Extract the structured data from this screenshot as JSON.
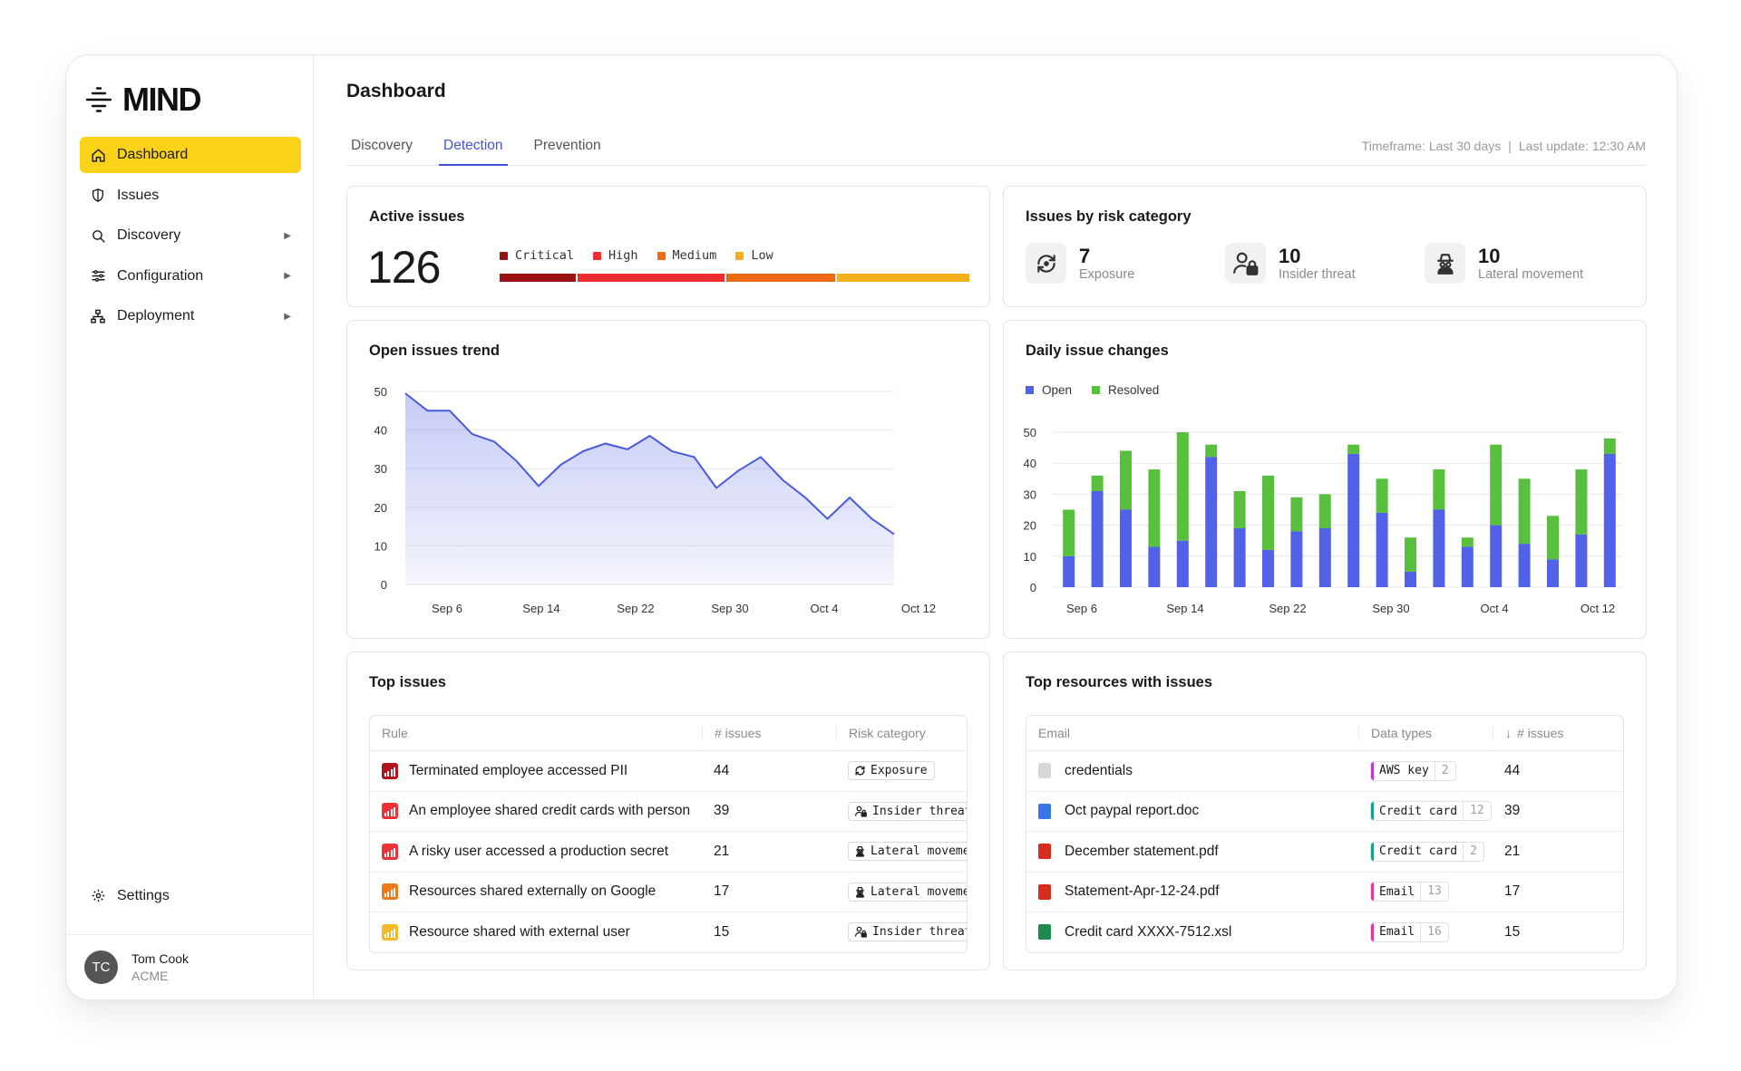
{
  "app": {
    "logo": "MIND"
  },
  "sidebar": {
    "items": [
      {
        "label": "Dashboard",
        "icon": "home-icon",
        "active": true
      },
      {
        "label": "Issues",
        "icon": "shield-icon"
      },
      {
        "label": "Discovery",
        "icon": "search-icon",
        "expandable": true
      },
      {
        "label": "Configuration",
        "icon": "sliders-icon",
        "expandable": true
      },
      {
        "label": "Deployment",
        "icon": "network-icon",
        "expandable": true
      }
    ],
    "settings": "Settings",
    "user": {
      "initials": "TC",
      "name": "Tom Cook",
      "org": "ACME"
    }
  },
  "header": {
    "title": "Dashboard",
    "tabs": [
      "Discovery",
      "Detection",
      "Prevention"
    ],
    "active_tab": "Detection",
    "timeframe": "Timeframe: Last 30 days",
    "separator": "|",
    "last_update": "Last update: 12:30 AM"
  },
  "active_issues": {
    "title": "Active issues",
    "total": "126",
    "legend": [
      {
        "label": "Critical",
        "color": "#9b1112",
        "share": 0.165
      },
      {
        "label": "High",
        "color": "#ee2e33",
        "share": 0.315
      },
      {
        "label": "Medium",
        "color": "#ec6a12",
        "share": 0.235
      },
      {
        "label": "Low",
        "color": "#f5b019",
        "share": 0.285
      }
    ]
  },
  "risk": {
    "title": "Issues by risk category",
    "items": [
      {
        "value": "7",
        "label": "Exposure",
        "icon": "refresh-icon"
      },
      {
        "value": "10",
        "label": "Insider threat",
        "icon": "user-lock-icon"
      },
      {
        "value": "10",
        "label": "Lateral movement",
        "icon": "spy-icon"
      }
    ]
  },
  "trend": {
    "title": "Open issues trend",
    "chart_data": {
      "type": "area",
      "y_ticks": [
        "50",
        "40",
        "30",
        "20",
        "10",
        "0"
      ],
      "x_ticks": [
        "Sep 6",
        "Sep 14",
        "Sep 22",
        "Sep 30",
        "Oct 4",
        "Oct 12"
      ],
      "ylim": [
        0,
        50
      ],
      "values": [
        49.5,
        45,
        45,
        39,
        37,
        32,
        25.5,
        31,
        34.5,
        36.5,
        35,
        38.5,
        34.5,
        33,
        25,
        29.5,
        33,
        27,
        22.5,
        17,
        22.5,
        17,
        13
      ],
      "color": "#4b5be0"
    }
  },
  "daily": {
    "title": "Daily issue changes",
    "legend": [
      {
        "label": "Open",
        "color": "#5161e8"
      },
      {
        "label": "Resolved",
        "color": "#59bf3e"
      }
    ],
    "chart_data": {
      "type": "bar",
      "stacked": true,
      "y_ticks": [
        "50",
        "40",
        "30",
        "20",
        "10",
        "0"
      ],
      "x_ticks": [
        "Sep 6",
        "Sep 14",
        "Sep 22",
        "Sep 30",
        "Oct 4",
        "Oct 12"
      ],
      "ylim": [
        0,
        50
      ],
      "series": [
        {
          "name": "Open",
          "values": [
            10,
            31,
            25,
            13,
            15,
            42,
            19,
            12,
            18,
            19,
            43,
            24,
            5,
            25,
            13,
            20,
            14,
            9,
            17,
            43
          ]
        },
        {
          "name": "Resolved",
          "values": [
            15,
            5,
            19,
            25,
            35,
            4,
            12,
            24,
            11,
            11,
            3,
            11,
            11,
            13,
            3,
            26,
            21,
            14,
            21,
            5
          ]
        }
      ]
    }
  },
  "top_issues": {
    "title": "Top issues",
    "columns": [
      "Rule",
      "# issues",
      "Risk category"
    ],
    "rows": [
      {
        "rule": "Terminated employee accessed PII",
        "count": "44",
        "category": "Exposure",
        "cat_icon": "refresh-icon",
        "color": "#b3131c"
      },
      {
        "rule": "An employee shared credit cards with person",
        "count": "39",
        "category": "Insider threat",
        "cat_icon": "user-lock-icon",
        "color": "#ec3137"
      },
      {
        "rule": "A risky user accessed a production secret",
        "count": "21",
        "category": "Lateral movement",
        "cat_icon": "spy-icon",
        "color": "#ec3137"
      },
      {
        "rule": "Resources shared externally on Google",
        "count": "17",
        "category": "Lateral movement",
        "cat_icon": "spy-icon",
        "color": "#ee7a1b"
      },
      {
        "rule": "Resource shared with external user",
        "count": "15",
        "category": "Insider threat",
        "cat_icon": "user-lock-icon",
        "color": "#f7b925"
      }
    ]
  },
  "top_resources": {
    "title": "Top resources with issues",
    "columns": [
      "Email",
      "Data types",
      "# issues"
    ],
    "sort_icon": "arrow-down-icon",
    "rows": [
      {
        "name": "credentials",
        "file_icon": "generic-file-icon",
        "dtype": "AWS key",
        "dcount": "2",
        "dcolor": "#b93ad8",
        "count": "44",
        "fcolor": "#d8d8dc"
      },
      {
        "name": "Oct paypal report.doc",
        "file_icon": "doc-file-icon",
        "dtype": "Credit card",
        "dcount": "12",
        "dcolor": "#1aa08a",
        "count": "39",
        "fcolor": "#3a74e6"
      },
      {
        "name": "December statement.pdf",
        "file_icon": "pdf-file-icon",
        "dtype": "Credit card",
        "dcount": "2",
        "dcolor": "#1aa08a",
        "count": "21",
        "fcolor": "#d62d20"
      },
      {
        "name": "Statement-Apr-12-24.pdf",
        "file_icon": "pdf-file-icon",
        "dtype": "Email",
        "dcount": "13",
        "dcolor": "#e2389a",
        "count": "17",
        "fcolor": "#d62d20"
      },
      {
        "name": "Credit card XXXX-7512.xsl",
        "file_icon": "xls-file-icon",
        "dtype": "Email",
        "dcount": "16",
        "dcolor": "#e2389a",
        "count": "15",
        "fcolor": "#1f8a4c"
      }
    ]
  }
}
